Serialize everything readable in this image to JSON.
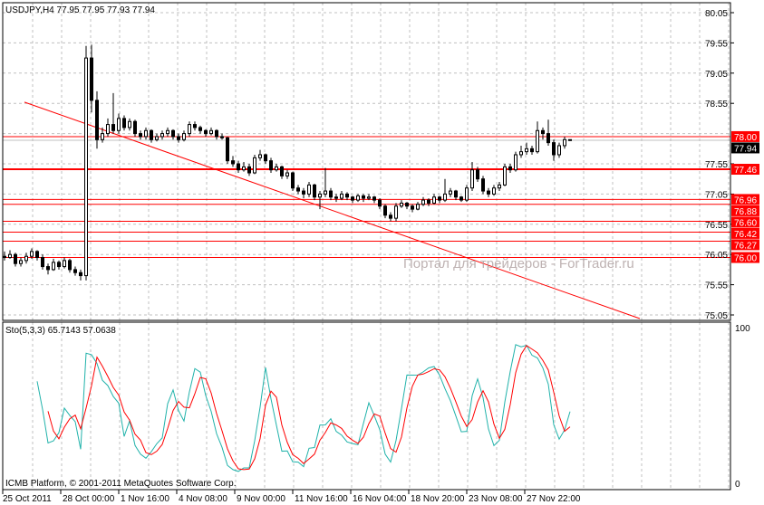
{
  "chart_data": {
    "type": "candlestick",
    "symbol_header": "USDJPY,H4  77.95 77.95 77.93 77.94",
    "price_axis_ticks": [
      "80.05",
      "79.55",
      "79.05",
      "78.55",
      "77.55",
      "77.05",
      "76.55",
      "76.05",
      "75.55",
      "75.05"
    ],
    "ylim": [
      75.05,
      80.05
    ],
    "time_axis_labels": [
      "25 Oct 2011",
      "28 Oct 00:00",
      "1 Nov 16:00",
      "4 Nov 08:00",
      "9 Nov 00:00",
      "11 Nov 16:00",
      "16 Nov 04:00",
      "18 Nov 20:00",
      "23 Nov 08:00",
      "27 Nov 22:00"
    ],
    "grid": true,
    "colors": {
      "bull_body": "#ffffff",
      "bear_body": "#000000",
      "level_line": "#ff0000",
      "price_line": "#c0c0c0",
      "stoch_main": "#20b2aa",
      "stoch_signal": "#ff0000",
      "grid": "#c0c0c0"
    },
    "horizontal_levels": [
      {
        "price": 78.0,
        "label": "78.00",
        "thick": false
      },
      {
        "price": 77.46,
        "label": "77.46",
        "thick": true
      },
      {
        "price": 76.96,
        "label": "76.96",
        "thick": false
      },
      {
        "price": 76.88,
        "label": "76.88",
        "thick": false
      },
      {
        "price": 76.6,
        "label": "76.60",
        "thick": false
      },
      {
        "price": 76.42,
        "label": "76.42",
        "thick": false
      },
      {
        "price": 76.27,
        "label": "76.27",
        "thick": false
      },
      {
        "price": 76.0,
        "label": "76.00",
        "thick": false
      }
    ],
    "current_price": {
      "price": 77.94,
      "label": "77.94"
    },
    "trendline": {
      "from_price": 78.57,
      "to_price": 74.99
    },
    "candles_ohlc": [
      [
        76.02,
        76.1,
        75.95,
        76.0
      ],
      [
        76.0,
        76.12,
        75.98,
        76.05
      ],
      [
        76.05,
        76.08,
        75.85,
        75.9
      ],
      [
        75.9,
        76.0,
        75.85,
        75.95
      ],
      [
        75.95,
        76.08,
        75.9,
        76.02
      ],
      [
        76.02,
        76.15,
        75.98,
        76.1
      ],
      [
        76.1,
        76.12,
        75.95,
        76.0
      ],
      [
        76.0,
        76.05,
        75.8,
        75.85
      ],
      [
        75.85,
        75.9,
        75.72,
        75.8
      ],
      [
        75.8,
        75.98,
        75.78,
        75.92
      ],
      [
        75.92,
        75.95,
        75.8,
        75.85
      ],
      [
        75.85,
        76.0,
        75.82,
        75.95
      ],
      [
        75.95,
        75.98,
        75.75,
        75.8
      ],
      [
        75.8,
        75.85,
        75.7,
        75.75
      ],
      [
        75.75,
        75.8,
        75.62,
        75.7
      ],
      [
        75.7,
        79.5,
        75.62,
        79.3
      ],
      [
        79.3,
        79.52,
        78.4,
        78.6
      ],
      [
        78.6,
        78.75,
        77.8,
        77.95
      ],
      [
        77.95,
        78.15,
        77.9,
        78.05
      ],
      [
        78.05,
        78.3,
        78.0,
        78.2
      ],
      [
        78.2,
        78.72,
        78.05,
        78.1
      ],
      [
        78.1,
        78.38,
        78.05,
        78.3
      ],
      [
        78.3,
        78.35,
        78.1,
        78.15
      ],
      [
        78.15,
        78.3,
        78.1,
        78.25
      ],
      [
        78.25,
        78.28,
        78.0,
        78.05
      ],
      [
        78.05,
        78.1,
        77.95,
        78.0
      ],
      [
        78.0,
        78.15,
        77.95,
        78.1
      ],
      [
        78.1,
        78.12,
        77.9,
        77.95
      ],
      [
        77.95,
        78.05,
        77.92,
        78.0
      ],
      [
        78.0,
        78.1,
        77.95,
        78.05
      ],
      [
        78.05,
        78.15,
        78.0,
        78.1
      ],
      [
        78.1,
        78.12,
        77.95,
        78.0
      ],
      [
        78.0,
        78.05,
        77.9,
        77.95
      ],
      [
        77.95,
        78.1,
        77.92,
        78.05
      ],
      [
        78.05,
        78.25,
        78.0,
        78.2
      ],
      [
        78.2,
        78.25,
        78.1,
        78.15
      ],
      [
        78.15,
        78.18,
        78.05,
        78.1
      ],
      [
        78.1,
        78.12,
        78.0,
        78.05
      ],
      [
        78.05,
        78.15,
        78.02,
        78.1
      ],
      [
        78.1,
        78.12,
        77.95,
        78.0
      ],
      [
        78.0,
        78.05,
        77.95,
        77.98
      ],
      [
        77.98,
        78.0,
        77.55,
        77.6
      ],
      [
        77.6,
        77.68,
        77.5,
        77.55
      ],
      [
        77.55,
        77.6,
        77.4,
        77.45
      ],
      [
        77.45,
        77.58,
        77.42,
        77.5
      ],
      [
        77.5,
        77.55,
        77.35,
        77.4
      ],
      [
        77.4,
        77.7,
        77.38,
        77.65
      ],
      [
        77.65,
        77.78,
        77.6,
        77.7
      ],
      [
        77.7,
        77.72,
        77.55,
        77.6
      ],
      [
        77.6,
        77.65,
        77.4,
        77.45
      ],
      [
        77.45,
        77.55,
        77.42,
        77.5
      ],
      [
        77.5,
        77.52,
        77.3,
        77.35
      ],
      [
        77.35,
        77.45,
        77.3,
        77.4
      ],
      [
        77.4,
        77.42,
        77.1,
        77.15
      ],
      [
        77.15,
        77.2,
        77.05,
        77.1
      ],
      [
        77.1,
        77.15,
        76.98,
        77.05
      ],
      [
        77.05,
        77.25,
        77.0,
        77.2
      ],
      [
        77.2,
        77.22,
        76.95,
        77.0
      ],
      [
        77.0,
        77.1,
        76.8,
        77.05
      ],
      [
        77.05,
        77.48,
        77.0,
        77.1
      ],
      [
        77.1,
        77.15,
        76.95,
        77.0
      ],
      [
        77.0,
        77.05,
        76.92,
        76.98
      ],
      [
        76.98,
        77.1,
        76.95,
        77.05
      ],
      [
        77.05,
        77.08,
        76.95,
        77.0
      ],
      [
        77.0,
        77.02,
        76.9,
        76.95
      ],
      [
        76.95,
        77.05,
        76.92,
        77.02
      ],
      [
        77.02,
        77.05,
        76.92,
        76.98
      ],
      [
        76.98,
        77.05,
        76.95,
        77.0
      ],
      [
        77.0,
        77.02,
        76.9,
        76.95
      ],
      [
        76.95,
        76.98,
        76.8,
        76.85
      ],
      [
        76.85,
        76.88,
        76.65,
        76.7
      ],
      [
        76.7,
        76.75,
        76.6,
        76.65
      ],
      [
        76.65,
        76.9,
        76.6,
        76.85
      ],
      [
        76.85,
        76.95,
        76.82,
        76.9
      ],
      [
        76.9,
        76.92,
        76.8,
        76.85
      ],
      [
        76.85,
        76.88,
        76.75,
        76.8
      ],
      [
        76.8,
        76.92,
        76.78,
        76.88
      ],
      [
        76.88,
        77.0,
        76.85,
        76.95
      ],
      [
        76.95,
        76.98,
        76.85,
        76.9
      ],
      [
        76.9,
        77.05,
        76.88,
        77.0
      ],
      [
        77.0,
        77.02,
        76.9,
        76.95
      ],
      [
        76.95,
        77.3,
        76.92,
        77.05
      ],
      [
        77.05,
        77.15,
        77.0,
        77.1
      ],
      [
        77.1,
        77.12,
        76.95,
        77.0
      ],
      [
        77.0,
        77.02,
        76.92,
        76.95
      ],
      [
        76.95,
        77.2,
        76.92,
        77.15
      ],
      [
        77.15,
        77.58,
        77.1,
        77.45
      ],
      [
        77.45,
        77.5,
        77.25,
        77.3
      ],
      [
        77.3,
        77.35,
        77.05,
        77.1
      ],
      [
        77.1,
        77.15,
        77.0,
        77.05
      ],
      [
        77.05,
        77.2,
        77.02,
        77.15
      ],
      [
        77.15,
        77.25,
        77.1,
        77.2
      ],
      [
        77.2,
        77.55,
        77.18,
        77.5
      ],
      [
        77.5,
        77.55,
        77.4,
        77.45
      ],
      [
        77.45,
        77.75,
        77.42,
        77.7
      ],
      [
        77.7,
        77.85,
        77.65,
        77.75
      ],
      [
        77.75,
        77.9,
        77.7,
        77.8
      ],
      [
        77.8,
        77.85,
        77.7,
        77.75
      ],
      [
        77.75,
        78.25,
        77.72,
        78.1
      ],
      [
        78.1,
        78.15,
        77.95,
        78.05
      ],
      [
        78.05,
        78.28,
        77.85,
        77.9
      ],
      [
        77.9,
        77.95,
        77.6,
        77.7
      ],
      [
        77.7,
        77.9,
        77.65,
        77.85
      ],
      [
        77.85,
        78.0,
        77.8,
        77.95
      ],
      [
        77.95,
        77.95,
        77.93,
        77.94
      ]
    ],
    "indicator": {
      "label": "Sto(5,3,3) 65.7143 57.0638",
      "ylim": [
        0,
        100
      ],
      "axis_ticks": [
        "100",
        "0"
      ]
    }
  },
  "watermark": "Портал для трейдеров - ForTrader.ru",
  "copyright": "ICMB Platform, © 2001-2011 MetaQuotes Software Corp."
}
